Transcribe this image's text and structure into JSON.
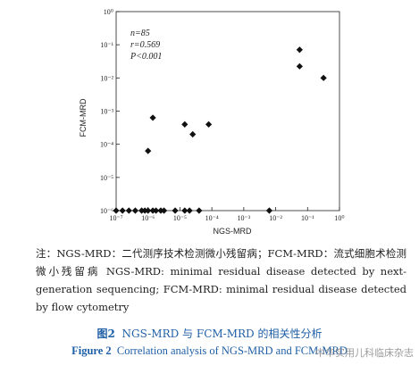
{
  "chart_data": {
    "type": "scatter",
    "xlabel": "NGS-MRD",
    "ylabel": "FCM-MRD",
    "scale": "log10",
    "xlim": [
      -7,
      0
    ],
    "ylim": [
      -6,
      0
    ],
    "x_ticks": [
      "10⁻⁷",
      "10⁻⁶",
      "10⁻⁵",
      "10⁻⁴",
      "10⁻³",
      "10⁻²",
      "10⁻¹",
      "10⁰"
    ],
    "y_ticks": [
      "10⁻⁶",
      "10⁻⁵",
      "10⁻⁴",
      "10⁻³",
      "10⁻²",
      "10⁻¹",
      "10⁰"
    ],
    "points_log10": [
      [
        -7.0,
        -6.0
      ],
      [
        -6.8,
        -6.0
      ],
      [
        -6.6,
        -6.0
      ],
      [
        -6.4,
        -6.0
      ],
      [
        -6.2,
        -6.0
      ],
      [
        -6.1,
        -6.0
      ],
      [
        -6.0,
        -6.0
      ],
      [
        -5.85,
        -6.0
      ],
      [
        -5.75,
        -6.0
      ],
      [
        -5.6,
        -6.0
      ],
      [
        -5.5,
        -6.0
      ],
      [
        -5.15,
        -6.0
      ],
      [
        -4.85,
        -6.0
      ],
      [
        -4.7,
        -6.0
      ],
      [
        -4.4,
        -6.0
      ],
      [
        -2.2,
        -6.0
      ],
      [
        -6.0,
        -4.2
      ],
      [
        -5.85,
        -3.2
      ],
      [
        -4.85,
        -3.4
      ],
      [
        -4.6,
        -3.7
      ],
      [
        -4.1,
        -3.4
      ],
      [
        -1.25,
        -1.15
      ],
      [
        -1.25,
        -1.65
      ],
      [
        -0.5,
        -2.0
      ]
    ],
    "annotations": {
      "n": "85",
      "r": "0.569",
      "p": "0.001"
    }
  },
  "stats": {
    "n_label": "n=85",
    "r_label": "r=0.569",
    "p_label": "P<0.001"
  },
  "note": {
    "cn": "注：NGS-MRD：二代测序技术检测微小残留病；FCM-MRD：流式细胞术检测微小残留病",
    "en": "NGS-MRD: minimal residual disease detected by next-generation sequencing; FCM-MRD: minimal residual disease detected by flow cytometry"
  },
  "caption": {
    "cn_fig": "图2",
    "cn_text": "NGS-MRD 与 FCM-MRD 的相关性分析",
    "en_fig": "Figure 2",
    "en_text": "Correlation analysis of NGS-MRD and FCM-MRD"
  },
  "watermark": "中华实用儿科临床杂志"
}
